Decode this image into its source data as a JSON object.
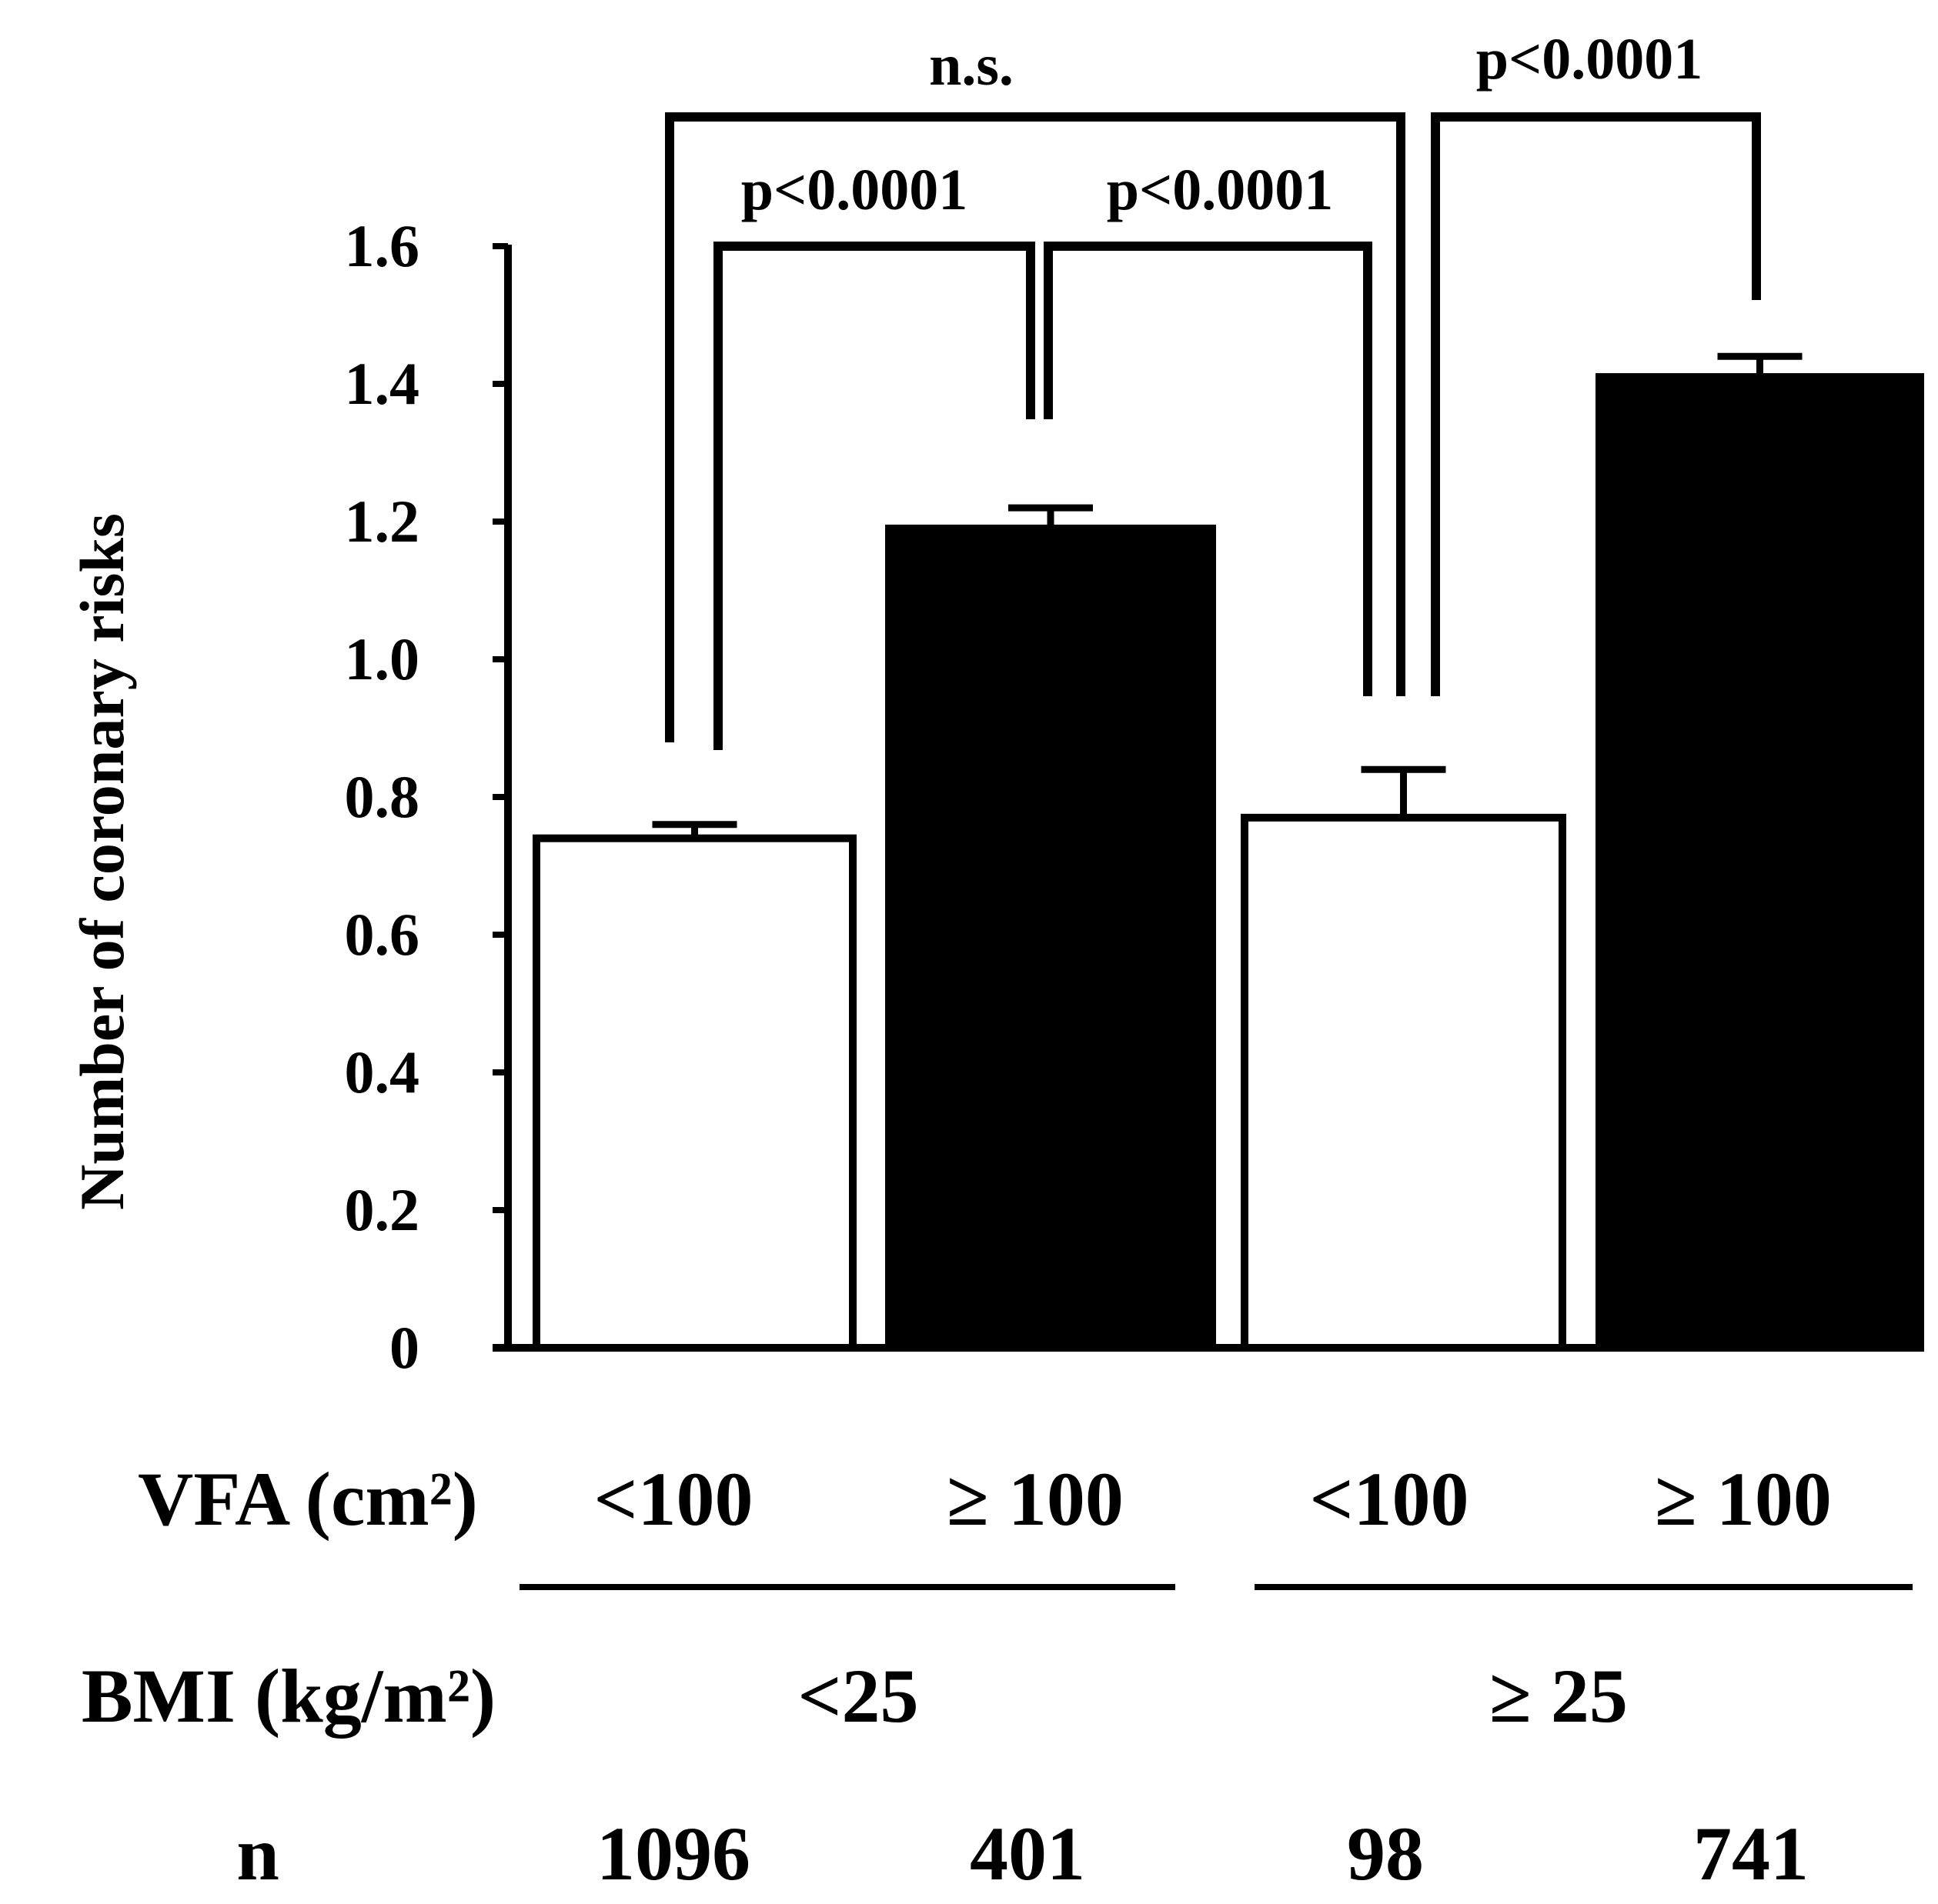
{
  "chart_data": {
    "type": "bar",
    "ylabel": "Number of coronary risks",
    "ylim": [
      0,
      1.6
    ],
    "yticks": [
      "0",
      "0.2",
      "0.4",
      "0.6",
      "0.8",
      "1.0",
      "1.2",
      "1.4",
      "1.6"
    ],
    "bars": [
      {
        "vfa": "<100",
        "bmi": "<25",
        "n": "1096",
        "value": 0.74,
        "error": 0.02,
        "fill": "#ffffff"
      },
      {
        "vfa": "≥ 100",
        "bmi": "<25",
        "n": "401",
        "value": 1.19,
        "error": 0.03,
        "fill": "#000000"
      },
      {
        "vfa": "<100",
        "bmi": "≥ 25",
        "n": "98",
        "value": 0.77,
        "error": 0.07,
        "fill": "#ffffff"
      },
      {
        "vfa": "≥ 100",
        "bmi": "≥ 25",
        "n": "741",
        "value": 1.41,
        "error": 0.03,
        "fill": "#000000"
      }
    ],
    "comparisons": [
      {
        "from": 0,
        "to": 1,
        "label": "p<0.0001"
      },
      {
        "from": 1,
        "to": 2,
        "label": "p<0.0001"
      },
      {
        "from": 0,
        "to": 2,
        "label": "n.s."
      },
      {
        "from": 2,
        "to": 3,
        "label": "p<0.0001"
      }
    ],
    "groups": [
      {
        "label": "<25",
        "bars": [
          0,
          1
        ]
      },
      {
        "label": "≥ 25",
        "bars": [
          2,
          3
        ]
      }
    ],
    "row_labels": {
      "vfa": "VFA (cm²)",
      "bmi": "BMI (kg/m²)",
      "n": "n"
    }
  }
}
